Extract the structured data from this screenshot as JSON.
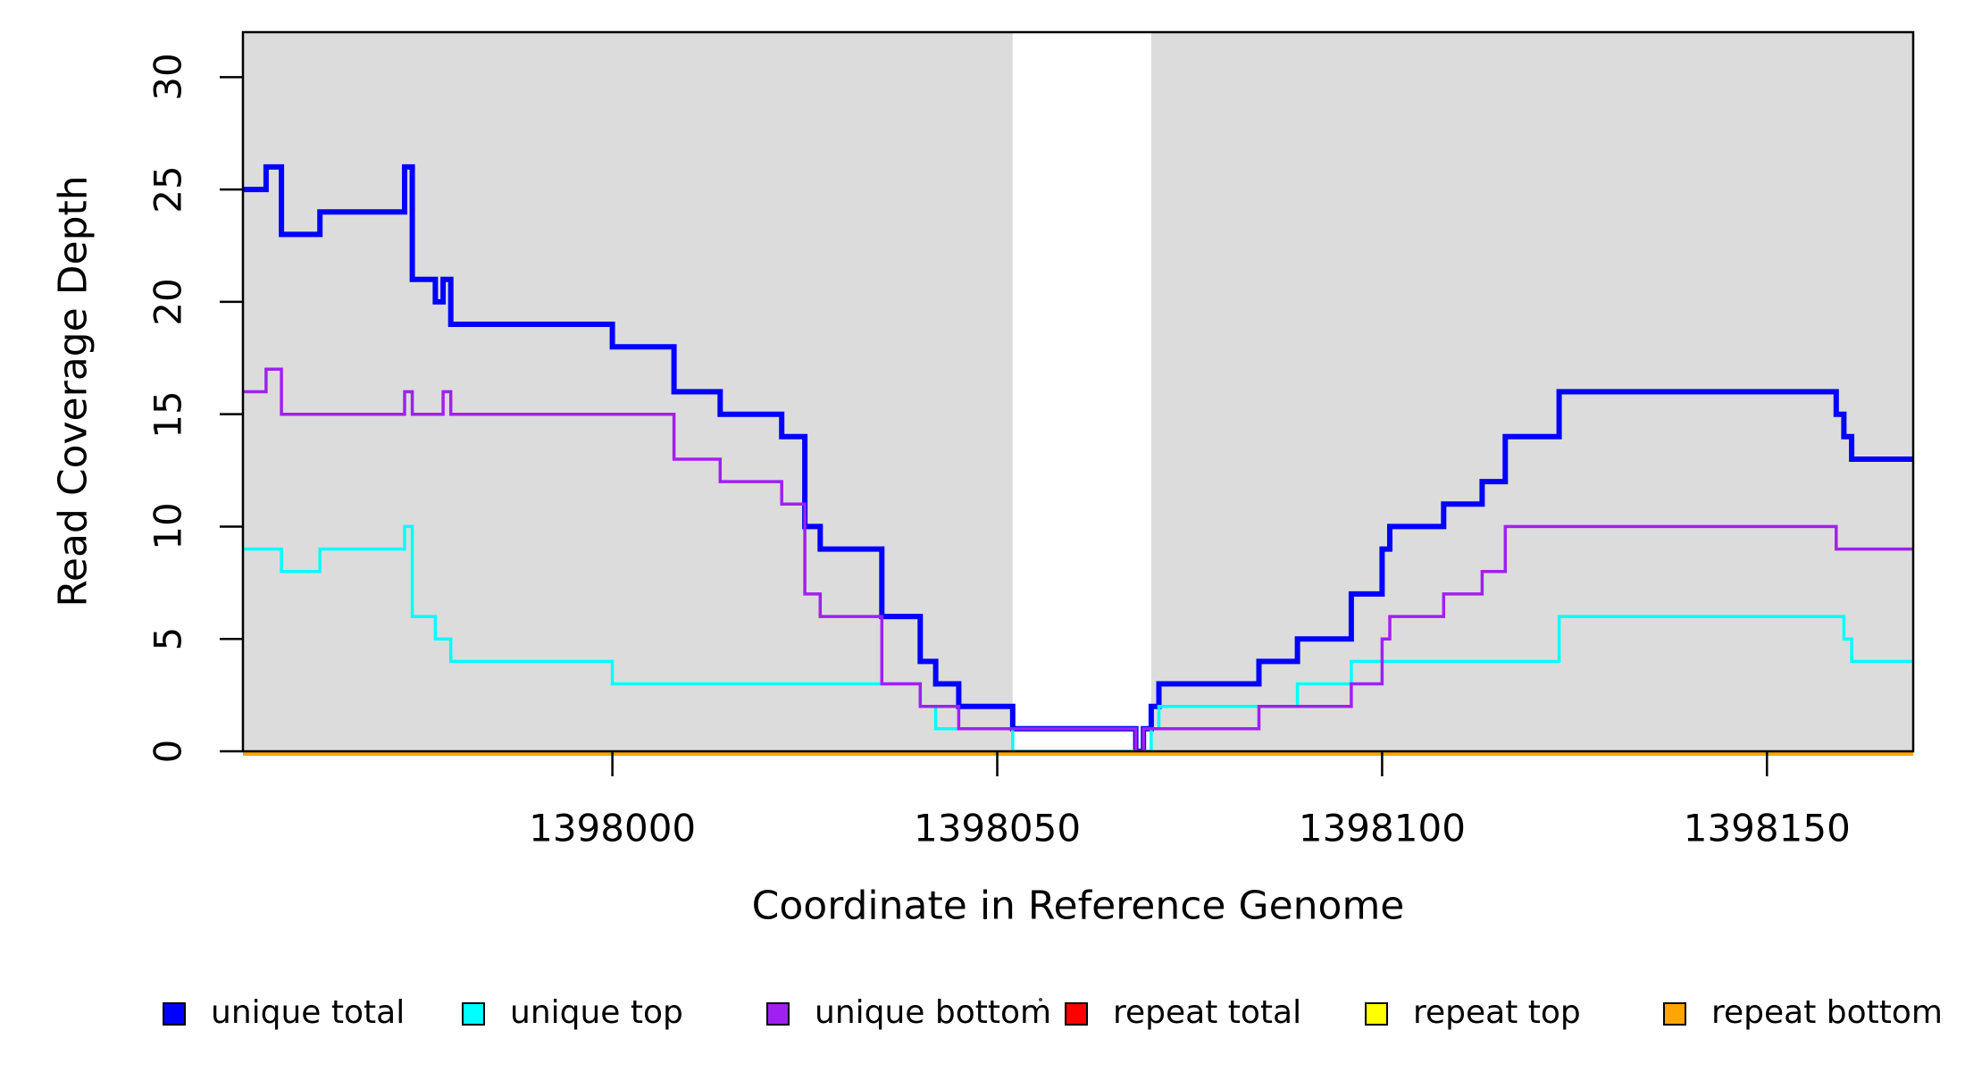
{
  "chart_data": {
    "type": "line",
    "subtype": "step-after-coverage-plot",
    "xlabel": "Coordinate in Reference Genome",
    "ylabel": "Read Coverage Depth",
    "x_ticks": [
      1398000,
      1398050,
      1398100,
      1398150
    ],
    "y_ticks": [
      0,
      5,
      10,
      15,
      20,
      25,
      30
    ],
    "xlim": [
      1397952,
      1398169
    ],
    "ylim": [
      0,
      32
    ],
    "x_end": 1398169,
    "grid": false,
    "plot_background_color": "#DCDCDC",
    "no_coverage_band": {
      "x0": 1398052,
      "x1": 1398070,
      "color": "#FFFFFF"
    },
    "series": [
      {
        "name": "unique total",
        "color": "#0000FF",
        "line_width": 6,
        "steps": [
          [
            1397952,
            25
          ],
          [
            1397955,
            26
          ],
          [
            1397957,
            23
          ],
          [
            1397962,
            24
          ],
          [
            1397973,
            26
          ],
          [
            1397974,
            21
          ],
          [
            1397977,
            20
          ],
          [
            1397978,
            21
          ],
          [
            1397979,
            19
          ],
          [
            1398000,
            18
          ],
          [
            1398008,
            16
          ],
          [
            1398014,
            15
          ],
          [
            1398022,
            14
          ],
          [
            1398025,
            10
          ],
          [
            1398027,
            9
          ],
          [
            1398035,
            6
          ],
          [
            1398040,
            4
          ],
          [
            1398042,
            3
          ],
          [
            1398045,
            2
          ],
          [
            1398052,
            1
          ],
          [
            1398068,
            0
          ],
          [
            1398069,
            1
          ],
          [
            1398070,
            2
          ],
          [
            1398071,
            3
          ],
          [
            1398084,
            4
          ],
          [
            1398089,
            5
          ],
          [
            1398096,
            7
          ],
          [
            1398100,
            9
          ],
          [
            1398101,
            10
          ],
          [
            1398108,
            11
          ],
          [
            1398113,
            12
          ],
          [
            1398116,
            14
          ],
          [
            1398123,
            16
          ],
          [
            1398159,
            15
          ],
          [
            1398160,
            14
          ],
          [
            1398161,
            13
          ]
        ]
      },
      {
        "name": "unique top",
        "color": "#00FFFF",
        "line_width": 3.5,
        "steps": [
          [
            1397952,
            9
          ],
          [
            1397957,
            8
          ],
          [
            1397962,
            9
          ],
          [
            1397973,
            10
          ],
          [
            1397974,
            6
          ],
          [
            1397977,
            5
          ],
          [
            1397979,
            4
          ],
          [
            1398000,
            3
          ],
          [
            1398040,
            2
          ],
          [
            1398042,
            1
          ],
          [
            1398052,
            0
          ],
          [
            1398070,
            1
          ],
          [
            1398071,
            2
          ],
          [
            1398089,
            3
          ],
          [
            1398096,
            4
          ],
          [
            1398123,
            6
          ],
          [
            1398160,
            5
          ],
          [
            1398161,
            4
          ]
        ]
      },
      {
        "name": "unique bottom",
        "color": "#A020F0",
        "line_width": 3.5,
        "steps": [
          [
            1397952,
            16
          ],
          [
            1397955,
            17
          ],
          [
            1397957,
            15
          ],
          [
            1397973,
            16
          ],
          [
            1397974,
            15
          ],
          [
            1397978,
            16
          ],
          [
            1397979,
            15
          ],
          [
            1398008,
            13
          ],
          [
            1398014,
            12
          ],
          [
            1398022,
            11
          ],
          [
            1398025,
            7
          ],
          [
            1398027,
            6
          ],
          [
            1398035,
            3
          ],
          [
            1398040,
            2
          ],
          [
            1398045,
            1
          ],
          [
            1398068,
            0
          ],
          [
            1398069,
            1
          ],
          [
            1398084,
            2
          ],
          [
            1398096,
            3
          ],
          [
            1398100,
            5
          ],
          [
            1398101,
            6
          ],
          [
            1398108,
            7
          ],
          [
            1398113,
            8
          ],
          [
            1398116,
            10
          ],
          [
            1398159,
            9
          ]
        ]
      },
      {
        "name": "repeat total",
        "color": "#FF0000",
        "line_width": 4,
        "baseline_offset": 2.5,
        "steps": [
          [
            1397952,
            0
          ]
        ]
      },
      {
        "name": "repeat top",
        "color": "#FFFF00",
        "line_width": 4,
        "baseline_offset": 2.5,
        "steps": [
          [
            1397952,
            0
          ]
        ]
      },
      {
        "name": "repeat bottom",
        "color": "#FFA500",
        "line_width": 5,
        "baseline_offset": 2.5,
        "steps": [
          [
            1397952,
            0
          ]
        ]
      }
    ]
  },
  "legend": {
    "items": [
      {
        "label": "unique total",
        "color": "#0000FF"
      },
      {
        "label": "unique top",
        "color": "#00FFFF"
      },
      {
        "label": "unique bottom",
        "color": "#A020F0"
      },
      {
        "label": "repeat total",
        "color": "#FF0000"
      },
      {
        "label": "repeat top",
        "color": "#FFFF00"
      },
      {
        "label": "repeat bottom",
        "color": "#FFA500"
      }
    ]
  }
}
